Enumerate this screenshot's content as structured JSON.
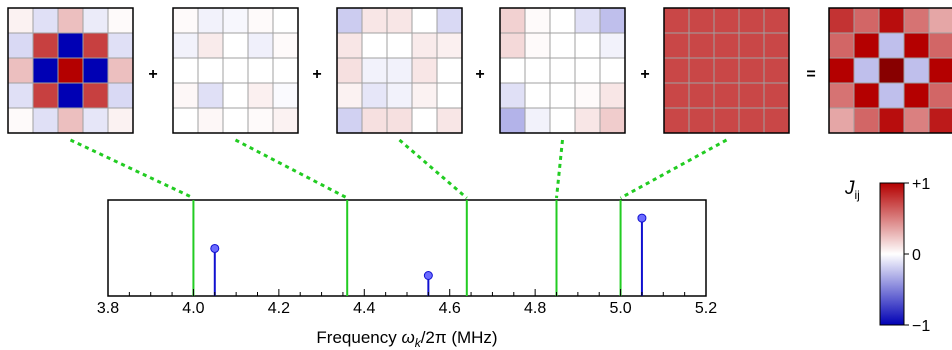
{
  "colors": {
    "red": "#b40000",
    "blue": "#0000b4",
    "green": "#22cc22",
    "stem": "#1010d0",
    "stem_fill": "#6b6bff",
    "grid": "#a0a0a0"
  },
  "operators": {
    "plus": "+",
    "equals": "="
  },
  "matrices": [
    {
      "name": "mode-1",
      "values": [
        [
          0.05,
          -0.12,
          0.25,
          -0.08,
          0.02
        ],
        [
          -0.15,
          0.75,
          -1.0,
          0.75,
          -0.12
        ],
        [
          0.25,
          -1.0,
          1.0,
          -1.0,
          0.25
        ],
        [
          -0.12,
          0.75,
          -1.0,
          0.75,
          -0.15
        ],
        [
          0.02,
          -0.12,
          0.25,
          -0.1,
          0.05
        ]
      ]
    },
    {
      "name": "mode-2",
      "values": [
        [
          0.02,
          -0.05,
          -0.03,
          0.02,
          0.0
        ],
        [
          -0.05,
          0.08,
          0.0,
          -0.06,
          0.02
        ],
        [
          0.0,
          0.0,
          0.0,
          0.0,
          0.0
        ],
        [
          0.03,
          -0.12,
          0.0,
          0.06,
          -0.02
        ],
        [
          0.0,
          0.03,
          0.0,
          0.02,
          0.05
        ]
      ]
    },
    {
      "name": "mode-3",
      "values": [
        [
          -0.2,
          0.1,
          0.1,
          0.0,
          -0.15
        ],
        [
          0.1,
          0.0,
          0.0,
          0.08,
          0.06
        ],
        [
          0.12,
          -0.05,
          -0.05,
          0.1,
          0.0
        ],
        [
          0.05,
          -0.1,
          -0.05,
          0.05,
          0.0
        ],
        [
          -0.18,
          0.12,
          0.12,
          0.0,
          0.1
        ]
      ]
    },
    {
      "name": "mode-4",
      "values": [
        [
          0.18,
          0.02,
          0.0,
          -0.12,
          -0.25
        ],
        [
          0.15,
          0.02,
          0.0,
          0.0,
          -0.05
        ],
        [
          0.0,
          0.0,
          0.0,
          0.0,
          0.0
        ],
        [
          -0.12,
          0.0,
          0.0,
          0.02,
          0.1
        ],
        [
          -0.3,
          -0.05,
          0.0,
          0.1,
          0.2
        ]
      ]
    },
    {
      "name": "mode-5",
      "values": [
        [
          0.72,
          0.72,
          0.72,
          0.72,
          0.72
        ],
        [
          0.72,
          0.72,
          0.72,
          0.72,
          0.72
        ],
        [
          0.72,
          0.72,
          0.72,
          0.72,
          0.72
        ],
        [
          0.72,
          0.72,
          0.72,
          0.72,
          0.72
        ],
        [
          0.72,
          0.72,
          0.72,
          0.72,
          0.72
        ]
      ]
    },
    {
      "name": "sum",
      "values": [
        [
          0.8,
          0.6,
          0.95,
          0.55,
          0.35
        ],
        [
          0.6,
          1.0,
          -0.25,
          1.0,
          0.6
        ],
        [
          1.0,
          -0.25,
          1.7,
          -0.25,
          1.0
        ],
        [
          0.55,
          1.0,
          -0.25,
          1.0,
          0.6
        ],
        [
          0.35,
          0.6,
          0.95,
          0.5,
          0.9
        ]
      ]
    }
  ],
  "spectrum": {
    "xlim": [
      3.8,
      5.2
    ],
    "ticks": [
      "3.8",
      "4.0",
      "4.2",
      "4.4",
      "4.6",
      "4.8",
      "5.0",
      "5.2"
    ],
    "tick_values": [
      3.8,
      4.0,
      4.2,
      4.4,
      4.6,
      4.8,
      5.0,
      5.2
    ],
    "xlabel_prefix": "Frequency ",
    "xlabel_omega": "ω",
    "xlabel_sub": "k",
    "xlabel_suffix": "/2π (MHz)",
    "mode_lines": [
      4.0,
      4.36,
      4.64,
      4.85,
      5.0
    ],
    "stems": [
      {
        "x": 4.05,
        "y": 0.58
      },
      {
        "x": 4.55,
        "y": 0.25
      },
      {
        "x": 5.05,
        "y": 0.95
      }
    ]
  },
  "colorbar": {
    "label_main": "J",
    "label_sub": "ij",
    "ticks": [
      "+1",
      "0",
      "−1"
    ],
    "tick_values": [
      1,
      0,
      -1
    ]
  }
}
